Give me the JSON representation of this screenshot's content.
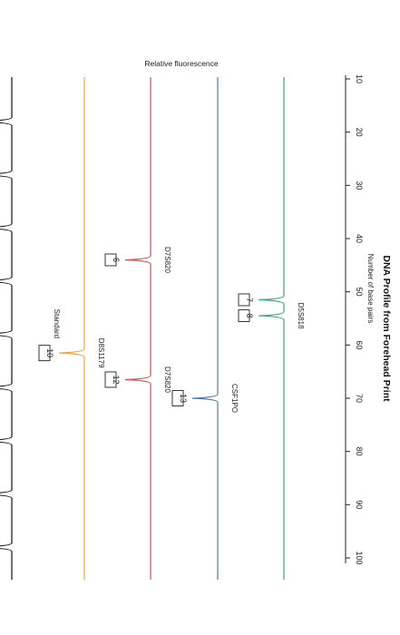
{
  "chart_data": {
    "type": "line",
    "title": "DNA Profile from Forehead Print",
    "xlabel": "Number of base pairs",
    "ylabel": "Relative fluorescence",
    "xlim": [
      10,
      100
    ],
    "xticks": [
      10,
      20,
      30,
      40,
      50,
      60,
      70,
      80,
      90,
      100
    ],
    "grid": false,
    "series": [
      {
        "color": "#3aa878",
        "peaks": [
          {
            "x": 51.5,
            "height": 0.55,
            "allele": "7",
            "locus": ""
          },
          {
            "x": 54.5,
            "height": 0.55,
            "allele": "8",
            "locus": "D5S818"
          }
        ]
      },
      {
        "color": "#4a7bbd",
        "peaks": [
          {
            "x": 70.0,
            "height": 0.55,
            "allele": "13",
            "locus": "CSF1PO"
          }
        ]
      },
      {
        "color": "#d8524f",
        "peaks": [
          {
            "x": 44.0,
            "height": 0.55,
            "allele": "6",
            "locus": "D7S820"
          },
          {
            "x": 66.5,
            "height": 0.55,
            "allele": "12",
            "locus": "D7S820"
          }
        ]
      },
      {
        "color": "#f0a33c",
        "peaks": [
          {
            "x": 61.5,
            "height": 0.55,
            "allele": "10",
            "locus": "D8S1179"
          }
        ]
      },
      {
        "name": "Standard",
        "color": "#111111",
        "peaks": [
          {
            "x": 18,
            "height": 0.65
          },
          {
            "x": 28,
            "height": 0.65
          },
          {
            "x": 38,
            "height": 0.65
          },
          {
            "x": 48,
            "height": 0.65
          },
          {
            "x": 58,
            "height": 0.65
          },
          {
            "x": 68,
            "height": 0.65
          },
          {
            "x": 78,
            "height": 0.65
          },
          {
            "x": 88,
            "height": 0.65
          },
          {
            "x": 98,
            "height": 0.65
          }
        ]
      }
    ]
  }
}
